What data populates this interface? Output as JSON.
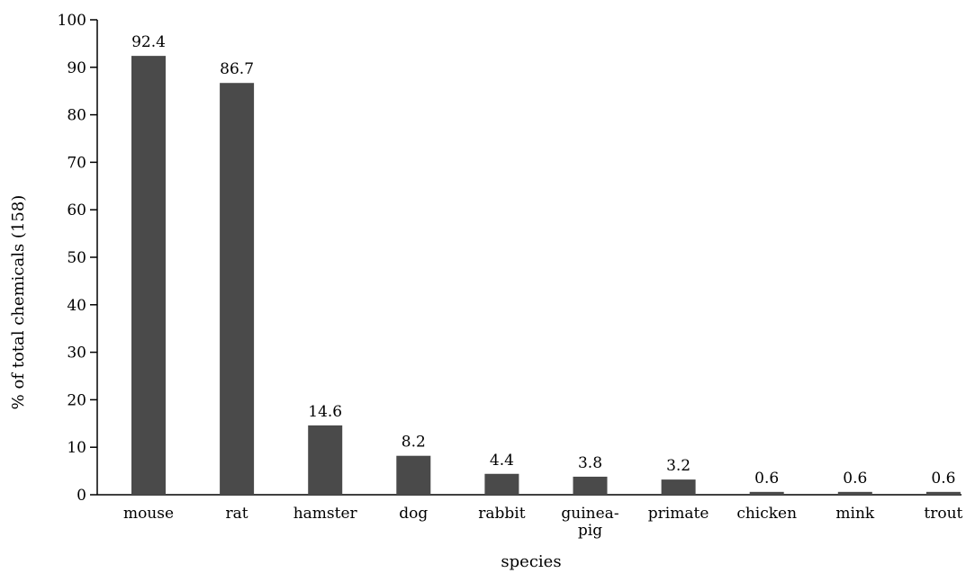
{
  "chart_data": {
    "type": "bar",
    "title": "",
    "xlabel": "species",
    "ylabel": "% of total chemicals (158)",
    "ylim": [
      0,
      100
    ],
    "yticks": [
      0,
      10,
      20,
      30,
      40,
      50,
      60,
      70,
      80,
      90,
      100
    ],
    "categories": [
      "mouse",
      "rat",
      "hamster",
      "dog",
      "rabbit",
      "guinea-\npig",
      "primate",
      "chicken",
      "mink",
      "trout"
    ],
    "values": [
      92.4,
      86.7,
      14.6,
      8.2,
      4.4,
      3.8,
      3.2,
      0.6,
      0.6,
      0.6
    ],
    "value_labels": [
      "92.4",
      "86.7",
      "14.6",
      "8.2",
      "4.4",
      "3.8",
      "3.2",
      "0.6",
      "0.6",
      "0.6"
    ],
    "bar_color": "#4a4a4a",
    "grid": false,
    "legend": "none"
  }
}
